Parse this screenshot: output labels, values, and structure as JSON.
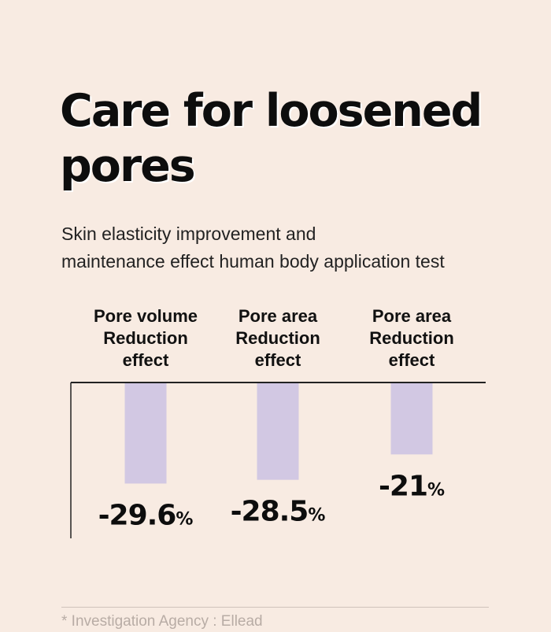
{
  "title_lines": [
    "Care for loosened",
    "pores"
  ],
  "subtitle_lines": [
    "Skin elasticity improvement and",
    "maintenance effect human body application test"
  ],
  "chart_data": {
    "type": "bar",
    "title": "",
    "xlabel": "",
    "ylabel": "",
    "categories": [
      [
        "Pore volume",
        "Reduction",
        "effect"
      ],
      [
        "Pore area",
        "Reduction",
        "effect"
      ],
      [
        "Pore area",
        "Reduction",
        "effect"
      ]
    ],
    "values": [
      -29.6,
      -28.5,
      -21
    ],
    "value_labels": [
      "-29.6",
      "-28.5",
      "-21"
    ],
    "unit": "%",
    "ylim": [
      -39.5,
      0
    ],
    "orientation": "downward from baseline",
    "grid": false,
    "legend": "none",
    "bar_color": "#d2c8e3"
  },
  "footnote": "* Investigation Agency : Ellead",
  "colors": {
    "background": "#f8ebe2",
    "bar": "#d2c8e3",
    "text": "#111111",
    "footnote": "#b8aca5"
  }
}
